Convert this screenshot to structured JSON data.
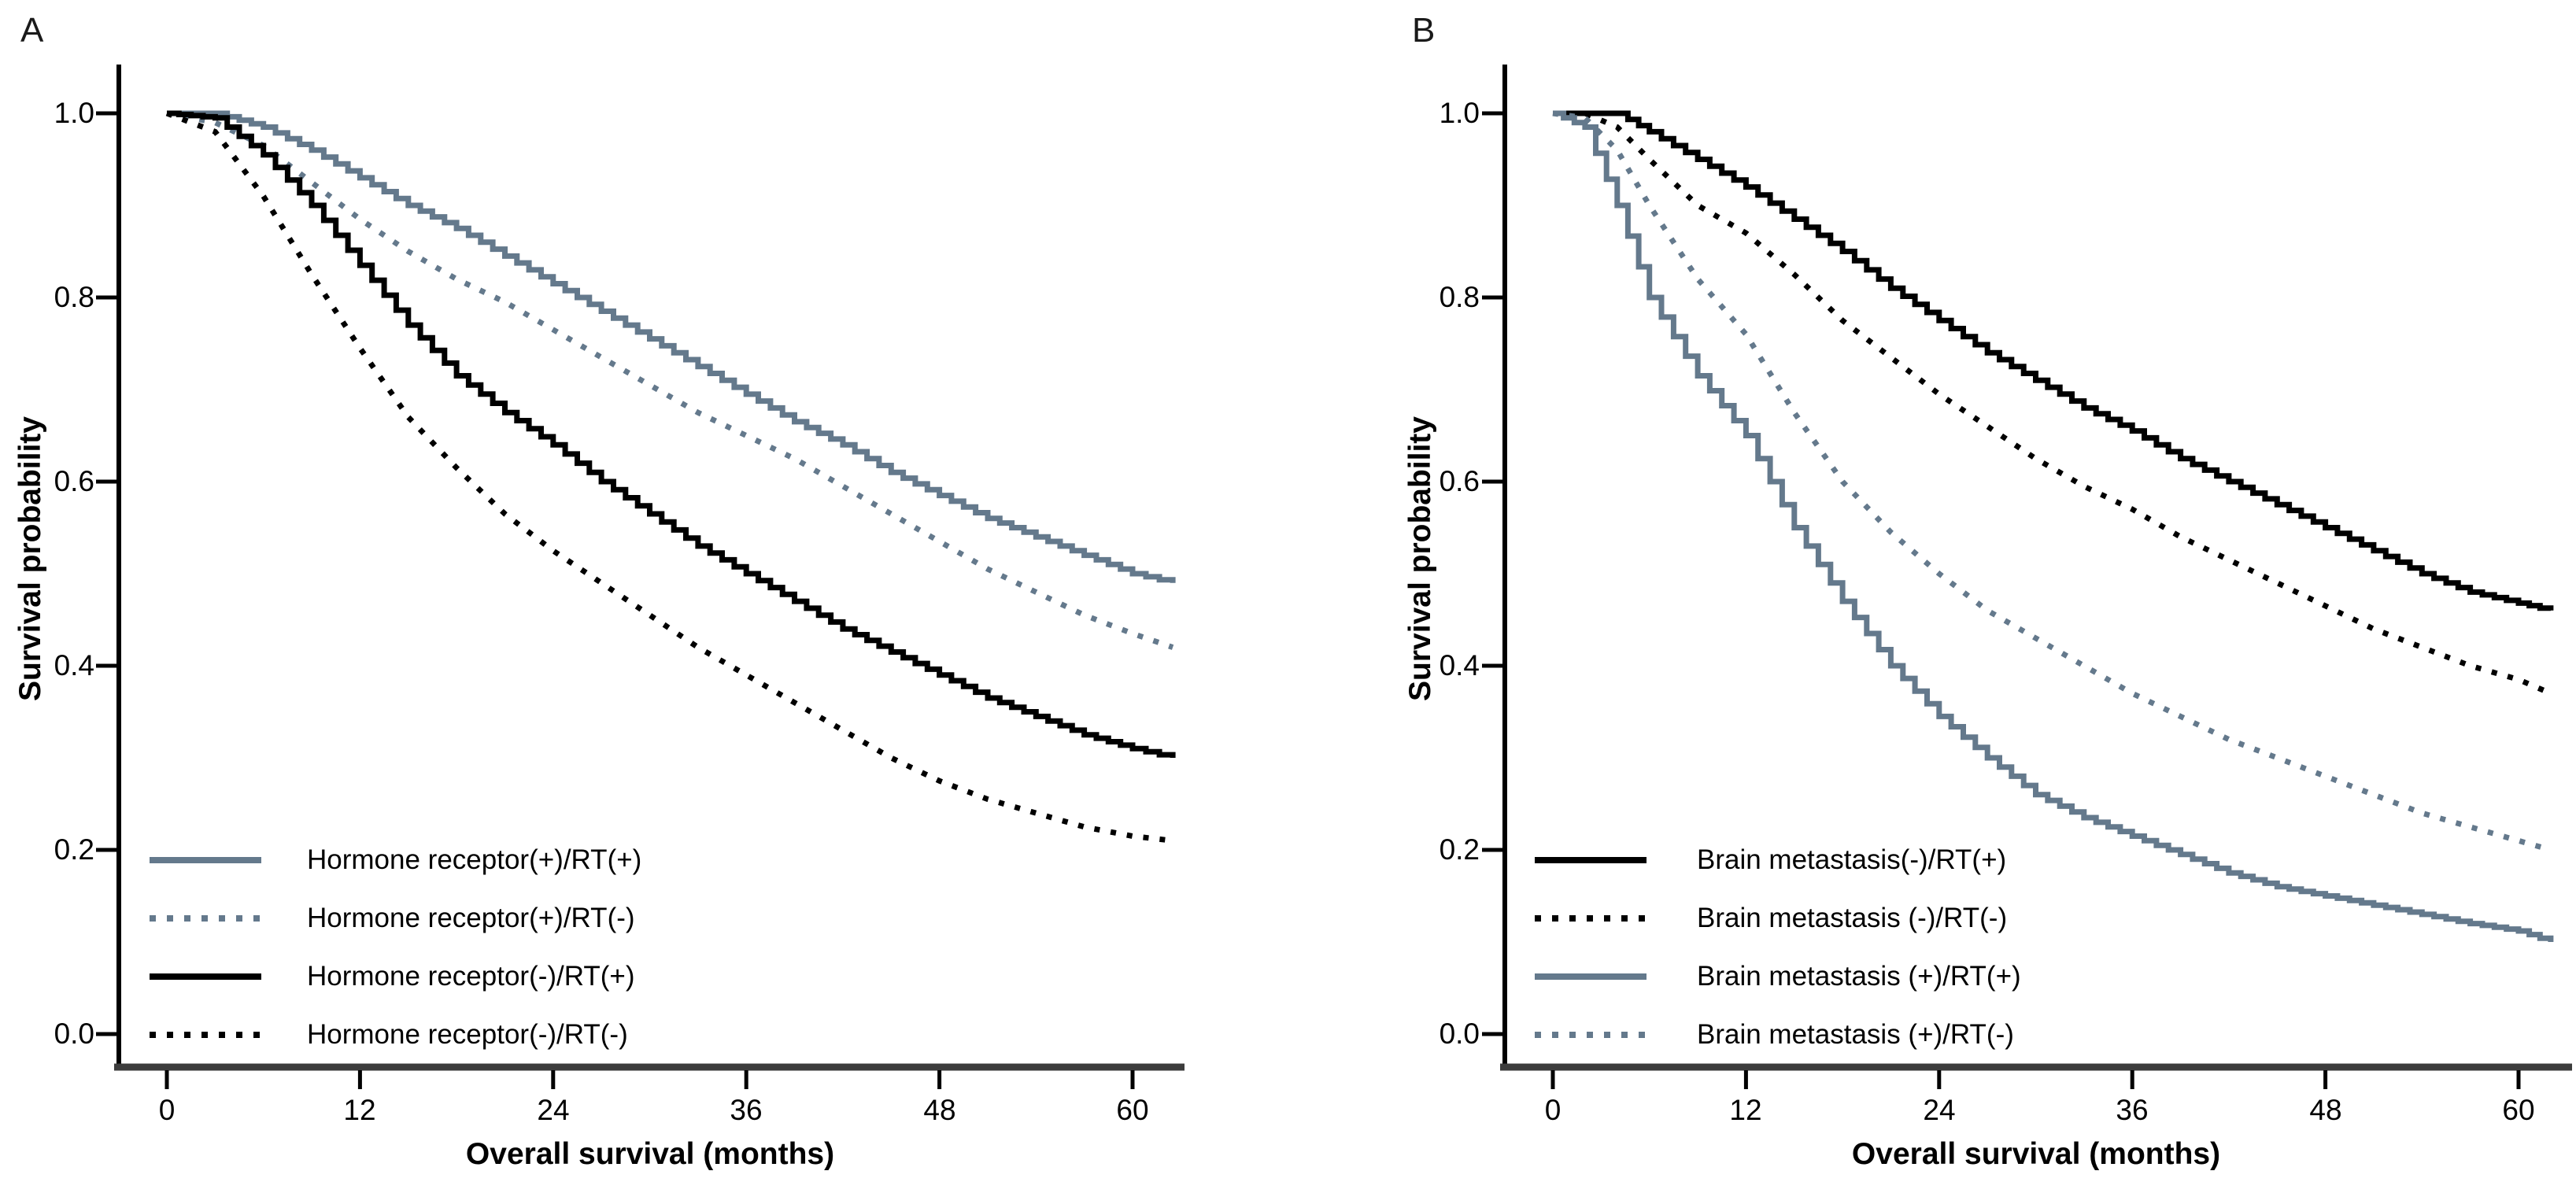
{
  "figure": {
    "background": "#ffffff",
    "colors": {
      "black": "#000000",
      "slate_gray": "#64798c",
      "axis_line": "#3c3c3c"
    }
  },
  "panels": [
    {
      "letter": "A",
      "ylabel": "Survival probability",
      "xlabel": "Overall survival (months)",
      "yticks": [
        "1.0",
        "0.8",
        "0.6",
        "0.4",
        "0.2",
        "0.0"
      ],
      "xticks": [
        "0",
        "12",
        "24",
        "36",
        "48",
        "60"
      ],
      "legend": [
        {
          "label": "Hormone receptor(+)/RT(+)",
          "line": "solid",
          "color": "#64798c"
        },
        {
          "label": "Hormone receptor(+)/RT(-)",
          "line": "dotted",
          "color": "#64798c"
        },
        {
          "label": "Hormone receptor(-)/RT(+)",
          "line": "solid",
          "color": "#000000"
        },
        {
          "label": "Hormone receptor(-)/RT(-)",
          "line": "dotted",
          "color": "#000000"
        }
      ]
    },
    {
      "letter": "B",
      "ylabel": "Survival probability",
      "xlabel": "Overall survival (months)",
      "yticks": [
        "1.0",
        "0.8",
        "0.6",
        "0.4",
        "0.2",
        "0.0"
      ],
      "xticks": [
        "0",
        "12",
        "24",
        "36",
        "48",
        "60"
      ],
      "legend": [
        {
          "label": "Brain metastasis(-)/RT(+)",
          "line": "solid",
          "color": "#000000"
        },
        {
          "label": "Brain metastasis (-)/RT(-)",
          "line": "dotted",
          "color": "#000000"
        },
        {
          "label": "Brain metastasis (+)/RT(+)",
          "line": "solid",
          "color": "#64798c"
        },
        {
          "label": "Brain metastasis (+)/RT(-)",
          "line": "dotted",
          "color": "#64798c"
        }
      ]
    }
  ],
  "chart_data": [
    {
      "type": "line",
      "subtype": "kaplan-meier-step",
      "panel": "A",
      "xlabel": "Overall survival (months)",
      "ylabel": "Survival probability",
      "xlim": [
        0,
        63.5
      ],
      "ylim": [
        0.0,
        1.0
      ],
      "xticks": [
        0,
        12,
        24,
        36,
        48,
        60
      ],
      "yticks": [
        1.0,
        0.8,
        0.6,
        0.4,
        0.2,
        0.0
      ],
      "grid": false,
      "legend_position": "lower-left",
      "x": [
        0,
        3,
        6,
        9,
        12,
        15,
        18,
        21,
        24,
        27,
        30,
        33,
        36,
        39,
        42,
        45,
        48,
        51,
        54,
        57,
        60,
        62.5
      ],
      "series": [
        {
          "name": "Hormone receptor(+)/RT(+)",
          "line": "solid",
          "color": "#64798c",
          "values": [
            1.0,
            1.0,
            0.985,
            0.96,
            0.93,
            0.9,
            0.875,
            0.845,
            0.815,
            0.785,
            0.755,
            0.725,
            0.695,
            0.665,
            0.64,
            0.61,
            0.585,
            0.56,
            0.54,
            0.52,
            0.5,
            0.49
          ]
        },
        {
          "name": "Hormone receptor(+)/RT(-)",
          "line": "dotted",
          "color": "#64798c",
          "values": [
            1.0,
            0.99,
            0.965,
            0.925,
            0.885,
            0.85,
            0.82,
            0.795,
            0.765,
            0.735,
            0.705,
            0.675,
            0.65,
            0.625,
            0.595,
            0.565,
            0.535,
            0.505,
            0.48,
            0.455,
            0.435,
            0.42
          ]
        },
        {
          "name": "Hormone receptor(-)/RT(+)",
          "line": "solid",
          "color": "#000000",
          "values": [
            1.0,
            0.995,
            0.955,
            0.9,
            0.835,
            0.77,
            0.715,
            0.675,
            0.64,
            0.6,
            0.565,
            0.53,
            0.5,
            0.47,
            0.44,
            0.415,
            0.39,
            0.365,
            0.345,
            0.325,
            0.31,
            0.3
          ]
        },
        {
          "name": "Hormone receptor(-)/RT(-)",
          "line": "dotted",
          "color": "#000000",
          "values": [
            1.0,
            0.98,
            0.91,
            0.825,
            0.745,
            0.67,
            0.615,
            0.565,
            0.525,
            0.49,
            0.455,
            0.42,
            0.39,
            0.36,
            0.33,
            0.3,
            0.275,
            0.255,
            0.24,
            0.225,
            0.215,
            0.21
          ]
        }
      ]
    },
    {
      "type": "line",
      "subtype": "kaplan-meier-step",
      "panel": "B",
      "xlabel": "Overall survival (months)",
      "ylabel": "Survival probability",
      "xlim": [
        0,
        63.5
      ],
      "ylim": [
        0.0,
        1.0
      ],
      "xticks": [
        0,
        12,
        24,
        36,
        48,
        60
      ],
      "yticks": [
        1.0,
        0.8,
        0.6,
        0.4,
        0.2,
        0.0
      ],
      "grid": false,
      "legend_position": "lower-left",
      "x": [
        0,
        2,
        4,
        6,
        9,
        12,
        15,
        18,
        21,
        24,
        27,
        30,
        33,
        36,
        39,
        42,
        45,
        48,
        51,
        54,
        57,
        60,
        62
      ],
      "series": [
        {
          "name": "Brain metastasis(-)/RT(+)",
          "line": "solid",
          "color": "#000000",
          "values": [
            1.0,
            1.0,
            1.0,
            0.98,
            0.95,
            0.92,
            0.885,
            0.85,
            0.81,
            0.775,
            0.74,
            0.71,
            0.68,
            0.655,
            0.625,
            0.6,
            0.575,
            0.55,
            0.525,
            0.5,
            0.48,
            0.468,
            0.46
          ]
        },
        {
          "name": "Brain metastasis (-)/RT(-)",
          "line": "dotted",
          "color": "#000000",
          "values": [
            1.0,
            1.0,
            0.985,
            0.95,
            0.9,
            0.87,
            0.825,
            0.775,
            0.735,
            0.695,
            0.66,
            0.625,
            0.595,
            0.57,
            0.54,
            0.515,
            0.49,
            0.465,
            0.44,
            0.42,
            0.4,
            0.385,
            0.37
          ]
        },
        {
          "name": "Brain metastasis (+)/RT(+)",
          "line": "solid",
          "color": "#64798c",
          "values": [
            1.0,
            0.985,
            0.9,
            0.8,
            0.715,
            0.65,
            0.55,
            0.47,
            0.4,
            0.345,
            0.3,
            0.26,
            0.235,
            0.215,
            0.195,
            0.175,
            0.16,
            0.15,
            0.14,
            0.13,
            0.12,
            0.112,
            0.1
          ]
        },
        {
          "name": "Brain metastasis (+)/RT(-)",
          "line": "dotted",
          "color": "#64798c",
          "values": [
            1.0,
            0.995,
            0.96,
            0.9,
            0.82,
            0.76,
            0.675,
            0.6,
            0.545,
            0.5,
            0.46,
            0.43,
            0.4,
            0.37,
            0.345,
            0.32,
            0.3,
            0.28,
            0.26,
            0.24,
            0.225,
            0.21,
            0.2
          ]
        }
      ]
    }
  ]
}
